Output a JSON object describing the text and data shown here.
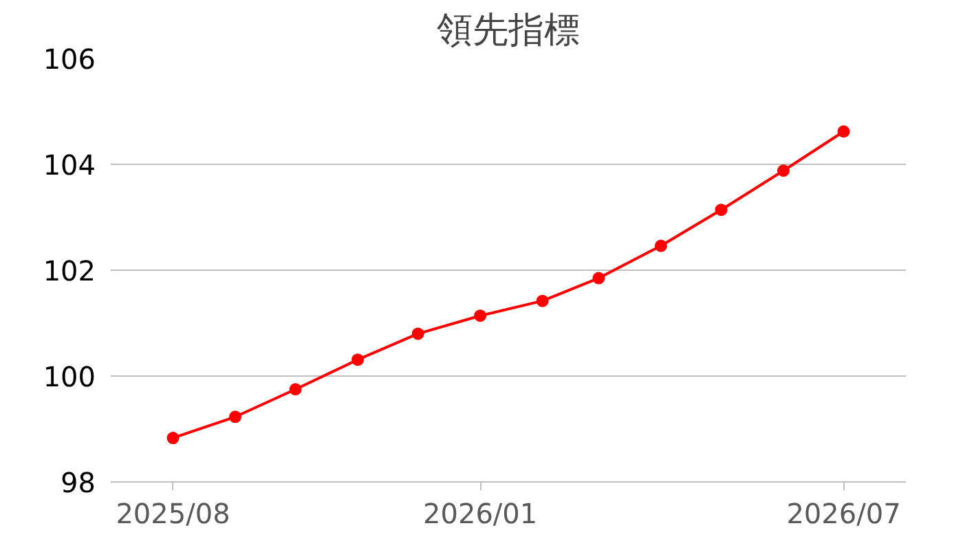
{
  "chart_data": {
    "type": "line",
    "title": "領先指標",
    "x": [
      "2025-08",
      "2025-09",
      "2025-10",
      "2025-11",
      "2025-12",
      "2026-01",
      "2026-02",
      "2026-03",
      "2026-04",
      "2026-05",
      "2026-06",
      "2026-07"
    ],
    "series": [
      {
        "color": "#ff0000",
        "values": [
          98.83,
          99.23,
          99.75,
          100.31,
          100.8,
          101.14,
          101.42,
          101.85,
          102.46,
          103.14,
          103.88,
          104.62
        ]
      }
    ],
    "xlim": [
      "2025-07-01",
      "2026-08-01"
    ],
    "xticks": [
      {
        "value": "2025-08",
        "label": "2025/08"
      },
      {
        "value": "2026-01",
        "label": "2026/01"
      },
      {
        "value": "2026-07",
        "label": "2026/07"
      }
    ],
    "ylim": [
      98,
      106
    ],
    "yticks": [
      98,
      100,
      102,
      104,
      106
    ],
    "grid": "y",
    "marker": "circle",
    "line_style": "solid"
  }
}
